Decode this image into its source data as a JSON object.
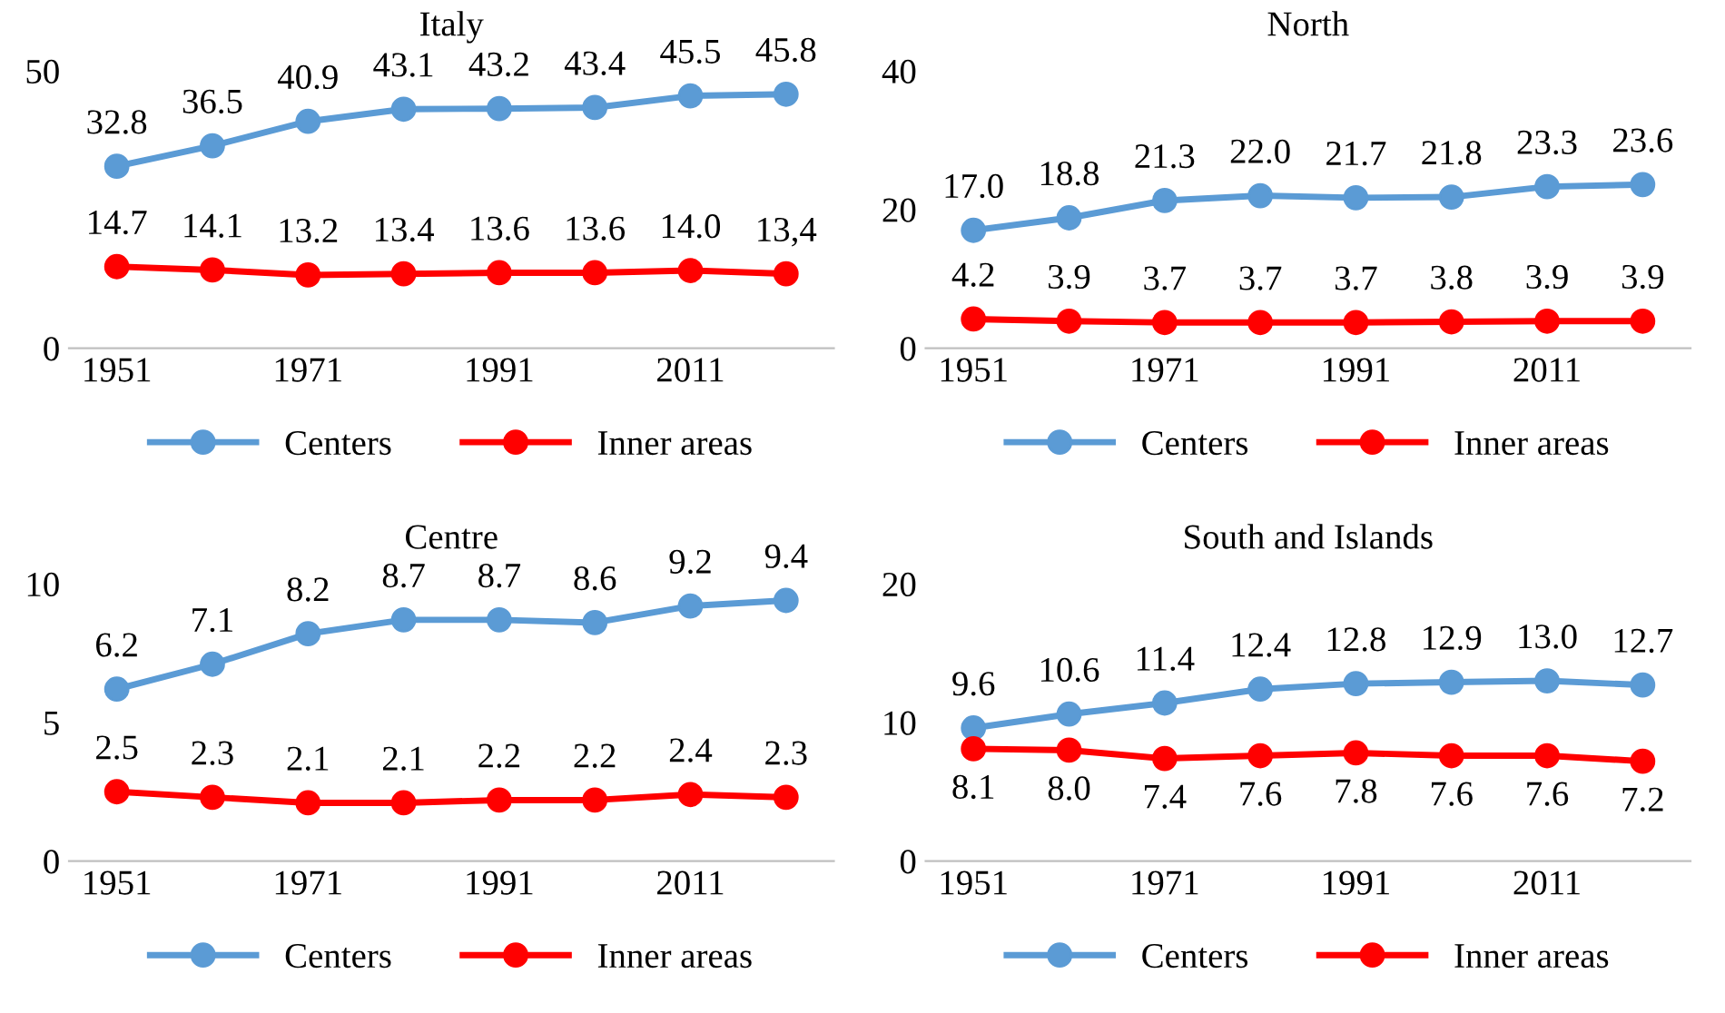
{
  "chart_data": [
    {
      "type": "line",
      "title": "Italy",
      "categories": [
        "1951",
        null,
        "1971",
        null,
        "1991",
        null,
        "2011",
        null
      ],
      "ylim": [
        0,
        50
      ],
      "yticks": [
        0,
        50
      ],
      "grid": false,
      "legend": "bottom",
      "marker": "circle",
      "line_style": "solid",
      "series": [
        {
          "name": "Centers",
          "color": "#5b9bd5",
          "values": [
            32.8,
            36.5,
            40.9,
            43.1,
            43.2,
            43.4,
            45.5,
            45.8
          ],
          "value_labels": [
            "32.8",
            "36.5",
            "40.9",
            "43.1",
            "43.2",
            "43.4",
            "45.5",
            "45.8"
          ]
        },
        {
          "name": "Inner areas",
          "color": "#ff0000",
          "values": [
            14.7,
            14.1,
            13.2,
            13.4,
            13.6,
            13.6,
            14.0,
            13.4
          ],
          "value_labels": [
            "14.7",
            "14.1",
            "13.2",
            "13.4",
            "13.6",
            "13.6",
            "14.0",
            "13,4"
          ]
        }
      ]
    },
    {
      "type": "line",
      "title": "North",
      "categories": [
        "1951",
        null,
        "1971",
        null,
        "1991",
        null,
        "2011",
        null
      ],
      "ylim": [
        0,
        40
      ],
      "yticks": [
        0,
        20,
        40
      ],
      "grid": false,
      "legend": "bottom",
      "marker": "circle",
      "line_style": "solid",
      "series": [
        {
          "name": "Centers",
          "color": "#5b9bd5",
          "values": [
            17.0,
            18.8,
            21.3,
            22.0,
            21.7,
            21.8,
            23.3,
            23.6
          ],
          "value_labels": [
            "17.0",
            "18.8",
            "21.3",
            "22.0",
            "21.7",
            "21.8",
            "23.3",
            "23.6"
          ]
        },
        {
          "name": "Inner areas",
          "color": "#ff0000",
          "values": [
            4.2,
            3.9,
            3.7,
            3.7,
            3.7,
            3.8,
            3.9,
            3.9
          ],
          "value_labels": [
            "4.2",
            "3.9",
            "3.7",
            "3.7",
            "3.7",
            "3.8",
            "3.9",
            "3.9"
          ]
        }
      ]
    },
    {
      "type": "line",
      "title": "Centre",
      "categories": [
        "1951",
        null,
        "1971",
        null,
        "1991",
        null,
        "2011",
        null
      ],
      "ylim": [
        0,
        10
      ],
      "yticks": [
        0,
        5,
        10
      ],
      "grid": false,
      "legend": "bottom",
      "marker": "circle",
      "line_style": "solid",
      "series": [
        {
          "name": "Centers",
          "color": "#5b9bd5",
          "values": [
            6.2,
            7.1,
            8.2,
            8.7,
            8.7,
            8.6,
            9.2,
            9.4
          ],
          "value_labels": [
            "6.2",
            "7.1",
            "8.2",
            "8.7",
            "8.7",
            "8.6",
            "9.2",
            "9.4"
          ]
        },
        {
          "name": "Inner areas",
          "color": "#ff0000",
          "values": [
            2.5,
            2.3,
            2.1,
            2.1,
            2.2,
            2.2,
            2.4,
            2.3
          ],
          "value_labels": [
            "2.5",
            "2.3",
            "2.1",
            "2.1",
            "2.2",
            "2.2",
            "2.4",
            "2.3"
          ]
        }
      ]
    },
    {
      "type": "line",
      "title": "South and Islands",
      "categories": [
        "1951",
        null,
        "1971",
        null,
        "1991",
        null,
        "2011",
        null
      ],
      "ylim": [
        0,
        20
      ],
      "yticks": [
        0,
        10,
        20
      ],
      "grid": false,
      "legend": "bottom",
      "marker": "circle",
      "line_style": "solid",
      "series": [
        {
          "name": "Centers",
          "color": "#5b9bd5",
          "values": [
            9.6,
            10.6,
            11.4,
            12.4,
            12.8,
            12.9,
            13.0,
            12.7
          ],
          "value_labels": [
            "9.6",
            "10.6",
            "11.4",
            "12.4",
            "12.8",
            "12.9",
            "13.0",
            "12.7"
          ]
        },
        {
          "name": "Inner areas",
          "color": "#ff0000",
          "values": [
            8.1,
            8.0,
            7.4,
            7.6,
            7.8,
            7.6,
            7.6,
            7.2
          ],
          "value_labels": [
            "8.1",
            "8.0",
            "7.4",
            "7.6",
            "7.8",
            "7.6",
            "7.6",
            "7.2"
          ]
        }
      ]
    }
  ]
}
